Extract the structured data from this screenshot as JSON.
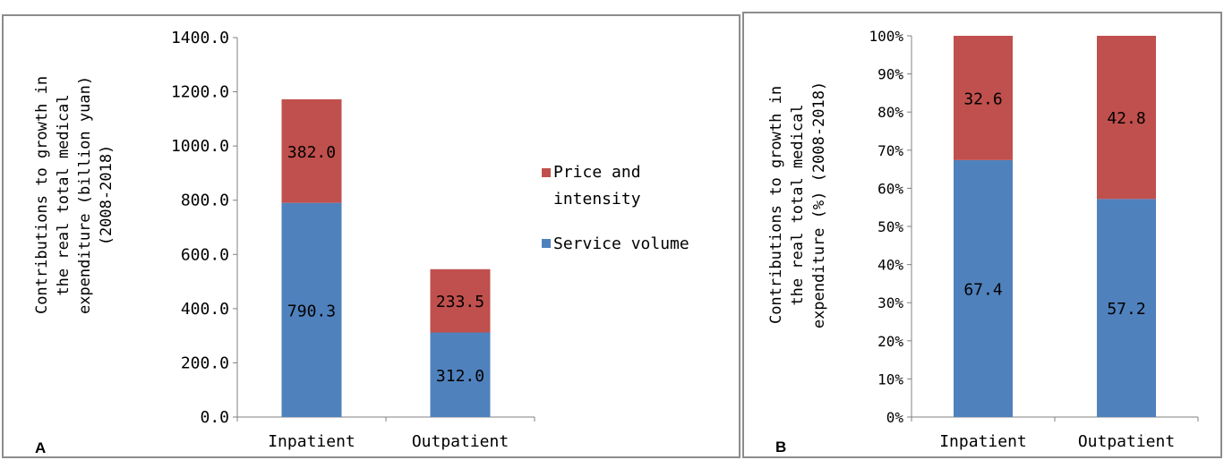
{
  "chart_data": [
    {
      "panel_label": "A",
      "type": "bar",
      "stacked": true,
      "categories": [
        "Inpatient",
        "Outpatient"
      ],
      "series": [
        {
          "name": "Service volume",
          "values": [
            790.3,
            312.0
          ],
          "color": "#4f81bd"
        },
        {
          "name": "Price and intensity",
          "values": [
            382.0,
            233.5
          ],
          "color": "#c0504d"
        }
      ],
      "data_labels": [
        [
          "790.3",
          "312.0"
        ],
        [
          "382.0",
          "233.5"
        ]
      ],
      "ylabel": [
        "Contributions to growth in",
        "the real total medical",
        "expenditure (billion yuan)",
        "(2008-2018)"
      ],
      "ylim": [
        0,
        1400
      ],
      "yticks": [
        "0.0",
        "200.0",
        "400.0",
        "600.0",
        "800.0",
        "1000.0",
        "1200.0",
        "1400.0"
      ],
      "legend": {
        "position": "right",
        "entries": [
          [
            "Price and",
            "intensity"
          ],
          [
            "Service volume"
          ]
        ]
      },
      "grid": false
    },
    {
      "panel_label": "B",
      "type": "bar",
      "stacked": true,
      "percent": true,
      "categories": [
        "Inpatient",
        "Outpatient"
      ],
      "series": [
        {
          "name": "Service volume",
          "values": [
            67.4,
            57.2
          ],
          "color": "#4f81bd"
        },
        {
          "name": "Price and intensity",
          "values": [
            32.6,
            42.8
          ],
          "color": "#c0504d"
        }
      ],
      "data_labels": [
        [
          "67.4",
          "57.2"
        ],
        [
          "32.6",
          "42.8"
        ]
      ],
      "ylabel": [
        "Contributions to growth in",
        "the real total medical",
        "expenditure (%) (2008-2018)"
      ],
      "ylim": [
        0,
        100
      ],
      "yticks": [
        "0%",
        "10%",
        "20%",
        "30%",
        "40%",
        "50%",
        "60%",
        "70%",
        "80%",
        "90%",
        "100%"
      ],
      "grid": false
    }
  ]
}
